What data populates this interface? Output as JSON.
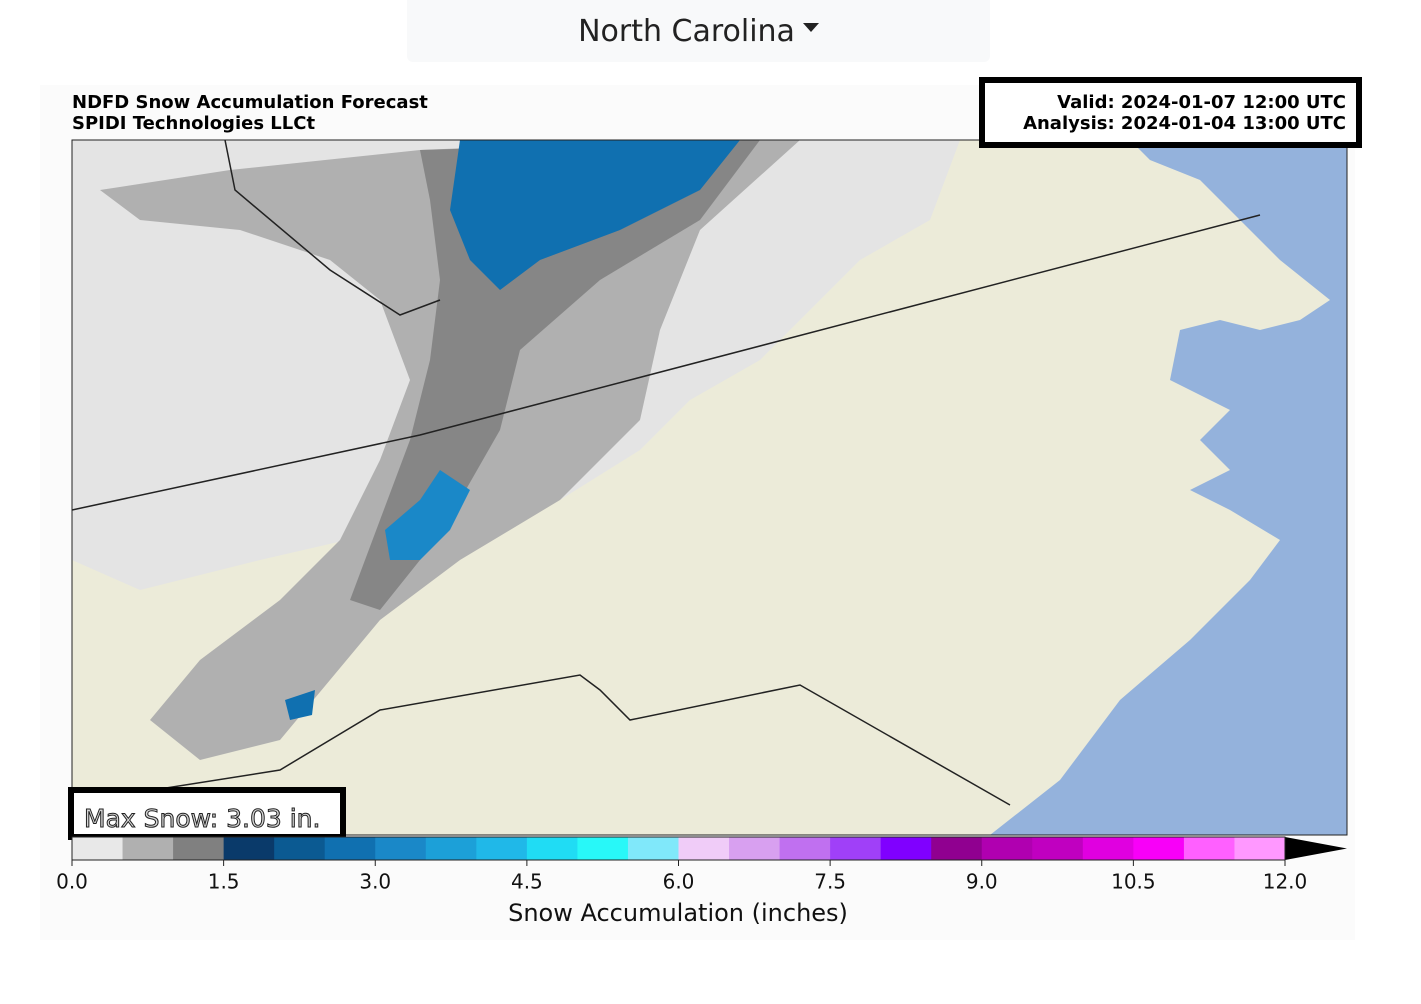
{
  "selector": {
    "label": "North Carolina"
  },
  "figure": {
    "title": "NDFD Snow Accumulation Forecast",
    "subtitle": "SPIDI Technologies LLCt",
    "valid": "Valid: 2024-01-07 12:00 UTC",
    "analysis": "Analysis: 2024-01-04 13:00 UTC",
    "max_snow": "Max Snow: 3.03 in.",
    "colorbar": {
      "label": "Snow Accumulation (inches)",
      "lim": [
        0,
        12
      ],
      "ticks": [
        {
          "value": 0,
          "label": "0.0"
        },
        {
          "value": 1.5,
          "label": "1.5"
        },
        {
          "value": 3,
          "label": "3.0"
        },
        {
          "value": 4.5,
          "label": "4.5"
        },
        {
          "value": 6,
          "label": "6.0"
        },
        {
          "value": 7.5,
          "label": "7.5"
        },
        {
          "value": 9,
          "label": "9.0"
        },
        {
          "value": 10.5,
          "label": "10.5"
        },
        {
          "value": 12,
          "label": "12.0"
        }
      ],
      "colors": [
        "#e8e8e8",
        "#b0b0b0",
        "#808080",
        "#0a3a6a",
        "#0b5a92",
        "#1070b0",
        "#1a88c8",
        "#1ca0d8",
        "#20b8e8",
        "#20dcf4",
        "#28f8f8",
        "#80e8fa",
        "#f0ccf8",
        "#d8a0f0",
        "#c070f0",
        "#a040f8",
        "#8000ff",
        "#900090",
        "#b000b0",
        "#c000c0",
        "#e000e0",
        "#f800f8",
        "#ff60ff",
        "#ff98ff"
      ],
      "extend_color": "#f4c8f8"
    }
  }
}
